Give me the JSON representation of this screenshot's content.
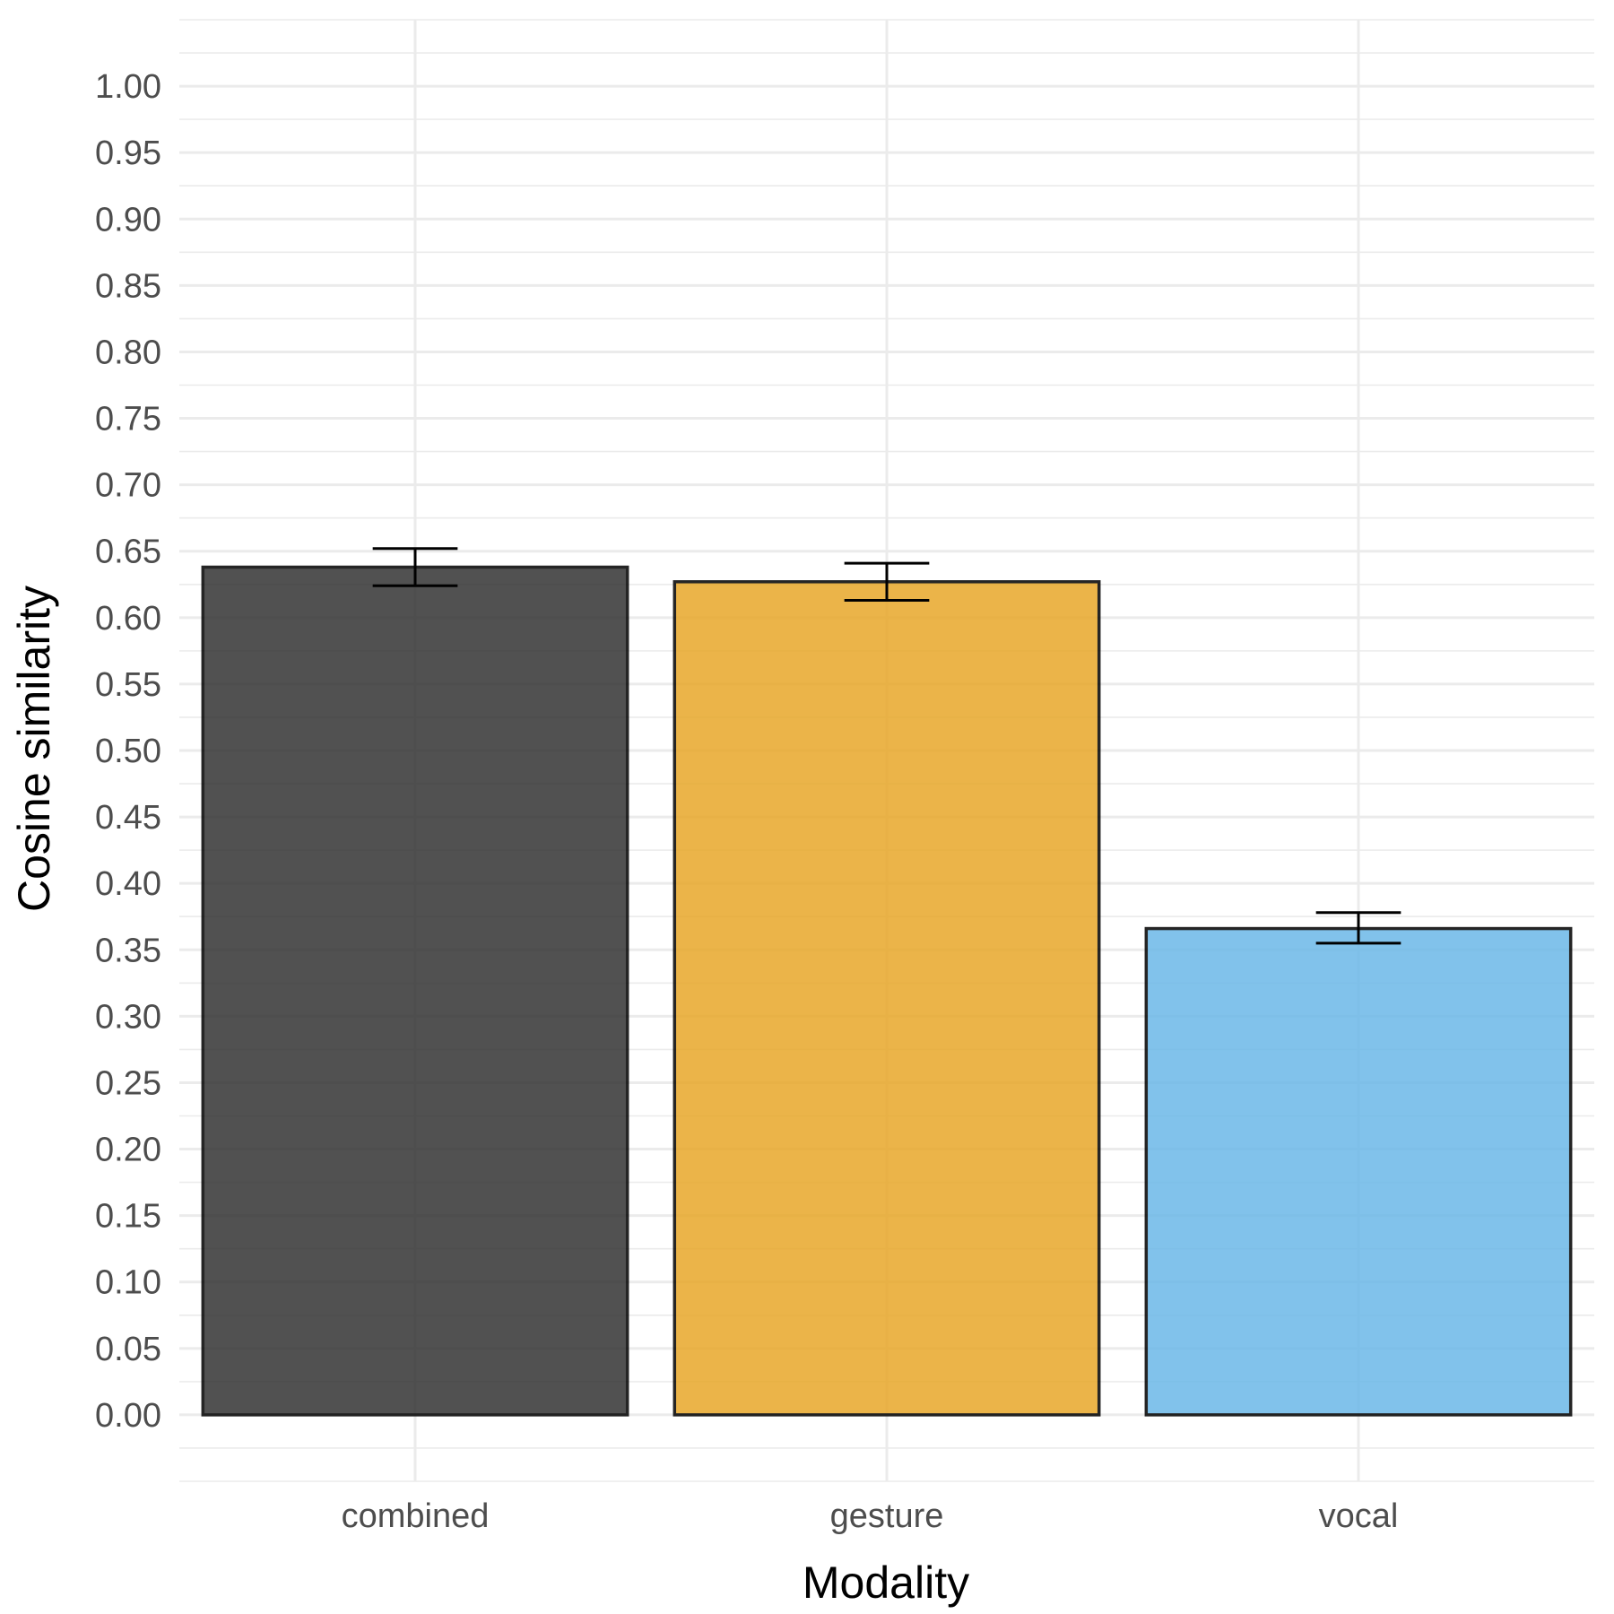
{
  "chart_data": {
    "type": "bar",
    "title": "",
    "xlabel": "Modality",
    "ylabel": "Cosine similarity",
    "categories": [
      "combined",
      "gesture",
      "vocal"
    ],
    "values": [
      0.638,
      0.627,
      0.366
    ],
    "error_low": [
      0.624,
      0.613,
      0.355
    ],
    "error_high": [
      0.652,
      0.641,
      0.378
    ],
    "colors": [
      "#333333",
      "#E8A82A",
      "#6CB8E8"
    ],
    "ylim": [
      -0.05,
      1.05
    ],
    "yticks": [
      "0.00",
      "0.05",
      "0.10",
      "0.15",
      "0.20",
      "0.25",
      "0.30",
      "0.35",
      "0.40",
      "0.45",
      "0.50",
      "0.55",
      "0.60",
      "0.65",
      "0.70",
      "0.75",
      "0.80",
      "0.85",
      "0.90",
      "0.95",
      "1.00"
    ],
    "grid": true,
    "legend": "none"
  }
}
